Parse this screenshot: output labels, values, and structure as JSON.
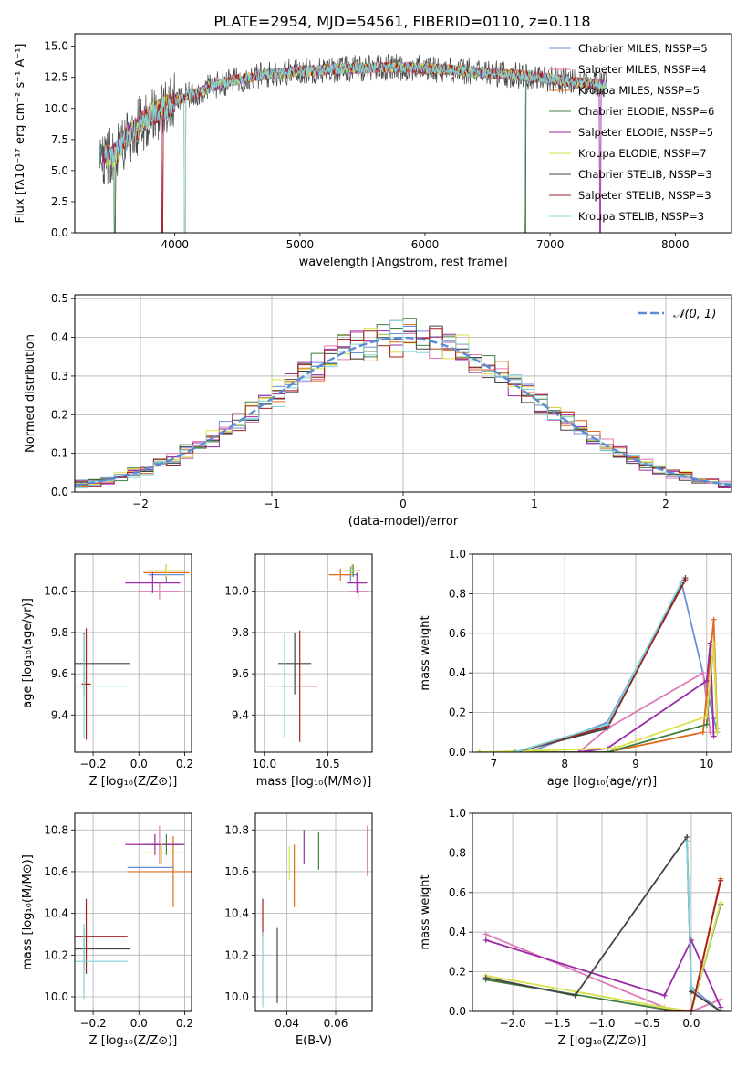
{
  "figure": {
    "title": "PLATE=2954, MJD=54561, FIBERID=0110, z=0.118"
  },
  "colors": {
    "Chabrier MILES": "#6a8fd8",
    "Salpeter MILES": "#e07ab8",
    "Kroupa MILES": "#e06a1a",
    "Chabrier ELODIE": "#3f7f3f",
    "Salpeter ELODIE": "#9b2ba6",
    "Kroupa ELODIE": "#d7e24a",
    "Chabrier STELIB": "#444444",
    "Salpeter STELIB": "#a51f1f",
    "Kroupa STELIB": "#7fd3d8",
    "normal": "#5b8bd6"
  },
  "chart_data": [
    {
      "id": "spectrum",
      "type": "line",
      "title": "PLATE=2954, MJD=54561, FIBERID=0110, z=0.118",
      "xlabel": "wavelength [Angstrom, rest frame]",
      "ylabel": "Flux [fλ10⁻¹⁷ erg cm⁻² s⁻¹ A⁻¹]",
      "xlim": [
        3200,
        8450
      ],
      "ylim": [
        0,
        16
      ],
      "xticks": [
        4000,
        5000,
        6000,
        7000,
        8000
      ],
      "yticks": [
        0.0,
        2.5,
        5.0,
        7.5,
        10.0,
        12.5,
        15.0
      ],
      "legend_position": "right",
      "legend": [
        "Chabrier MILES, N_SSP=5",
        "Salpeter MILES, N_SSP=4",
        "Kroupa MILES, N_SSP=5",
        "Chabrier ELODIE, N_SSP=6",
        "Salpeter ELODIE, N_SSP=5",
        "Kroupa ELODIE, N_SSP=7",
        "Chabrier STELIB, N_SSP=3",
        "Salpeter STELIB, N_SSP=3",
        "Kroupa STELIB, N_SSP=3"
      ],
      "data_curve": {
        "x": [
          3400,
          3500,
          3600,
          3700,
          3800,
          3900,
          4000,
          4100,
          4200,
          4300,
          4400,
          4600,
          4800,
          5000,
          5200,
          5400,
          5600,
          5800,
          6000,
          6200,
          6400,
          6600,
          6800,
          7000,
          7200,
          7400
        ],
        "y": [
          6.3,
          6.0,
          7.5,
          8.5,
          9.5,
          10.0,
          10.5,
          11.0,
          11.3,
          11.8,
          12.1,
          12.5,
          12.8,
          13.0,
          13.1,
          13.2,
          13.3,
          13.3,
          13.2,
          13.1,
          12.9,
          12.8,
          12.6,
          12.4,
          12.1,
          11.9
        ]
      },
      "dropouts": [
        3520,
        3900,
        4080,
        6800,
        7400
      ]
    },
    {
      "id": "residuals",
      "type": "histogram",
      "xlabel": "(data-model)/error",
      "ylabel": "Normed distribution",
      "xlim": [
        -2.5,
        2.5
      ],
      "ylim": [
        0,
        0.51
      ],
      "xticks": [
        -2,
        -1,
        0,
        1,
        2
      ],
      "yticks": [
        0.0,
        0.1,
        0.2,
        0.3,
        0.4,
        0.5
      ],
      "grid": true,
      "legend_position": "top-right",
      "legend": [
        "𝒩(0, 1)"
      ],
      "bin_width": 0.1,
      "normal_reference": {
        "mean": 0,
        "sigma": 1
      }
    },
    {
      "id": "age-Z",
      "type": "errorbar",
      "xlabel": "Z [log₁₀(Z/Z⊙)]",
      "ylabel": "age  [log₁₀(age/yr)]",
      "xlim": [
        -0.28,
        0.23
      ],
      "ylim": [
        9.22,
        10.18
      ],
      "xticks": [
        -0.2,
        0.0,
        0.2
      ],
      "yticks": [
        9.4,
        9.6,
        9.8,
        10.0
      ],
      "grid": true,
      "series": [
        {
          "name": "Chabrier MILES",
          "x": 0.12,
          "xerr": 0.08,
          "y": 10.08,
          "yerr": 0.04
        },
        {
          "name": "Salpeter MILES",
          "x": 0.09,
          "xerr": 0.09,
          "y": 10.0,
          "yerr": 0.04
        },
        {
          "name": "Kroupa MILES",
          "x": 0.12,
          "xerr": 0.1,
          "y": 10.09,
          "yerr": 0.03
        },
        {
          "name": "Chabrier ELODIE",
          "x": 0.12,
          "xerr": 0.08,
          "y": 10.1,
          "yerr": 0.03
        },
        {
          "name": "Salpeter ELODIE",
          "x": 0.06,
          "xerr": 0.12,
          "y": 10.04,
          "yerr": 0.05
        },
        {
          "name": "Kroupa ELODIE",
          "x": 0.12,
          "xerr": 0.08,
          "y": 10.1,
          "yerr": 0.03
        },
        {
          "name": "Chabrier STELIB",
          "x": -0.24,
          "xerr": 0.2,
          "y": 9.65,
          "yerr": 0.15
        },
        {
          "name": "Salpeter STELIB",
          "x": -0.23,
          "xerr": 0.02,
          "y": 9.55,
          "yerr": 0.27
        },
        {
          "name": "Kroupa STELIB",
          "x": -0.24,
          "xerr": 0.19,
          "y": 9.54,
          "yerr": 0.25
        }
      ]
    },
    {
      "id": "age-mass",
      "type": "errorbar",
      "xlabel": "mass [log₁₀(M/M⊙)]",
      "ylabel": "",
      "xlim": [
        9.93,
        10.85
      ],
      "ylim": [
        9.22,
        10.18
      ],
      "xticks": [
        10.0,
        10.5
      ],
      "yticks": [
        9.4,
        9.6,
        9.8,
        10.0
      ],
      "grid": true,
      "series": [
        {
          "name": "Chabrier MILES",
          "x": 10.68,
          "xerr": 0.06,
          "y": 10.08,
          "yerr": 0.04
        },
        {
          "name": "Salpeter MILES",
          "x": 10.74,
          "xerr": 0.07,
          "y": 10.0,
          "yerr": 0.04
        },
        {
          "name": "Kroupa MILES",
          "x": 10.6,
          "xerr": 0.09,
          "y": 10.08,
          "yerr": 0.03
        },
        {
          "name": "Chabrier ELODIE",
          "x": 10.7,
          "xerr": 0.06,
          "y": 10.1,
          "yerr": 0.03
        },
        {
          "name": "Salpeter ELODIE",
          "x": 10.73,
          "xerr": 0.08,
          "y": 10.04,
          "yerr": 0.05
        },
        {
          "name": "Kroupa ELODIE",
          "x": 10.69,
          "xerr": 0.06,
          "y": 10.1,
          "yerr": 0.03
        },
        {
          "name": "Chabrier STELIB",
          "x": 10.24,
          "xerr": 0.13,
          "y": 9.65,
          "yerr": 0.15
        },
        {
          "name": "Salpeter STELIB",
          "x": 10.28,
          "xerr": 0.14,
          "y": 9.54,
          "yerr": 0.27
        },
        {
          "name": "Kroupa STELIB",
          "x": 10.16,
          "xerr": 0.14,
          "y": 9.54,
          "yerr": 0.25
        }
      ]
    },
    {
      "id": "weight-age",
      "type": "line",
      "xlabel": "age  [log₁₀(age/yr)]",
      "ylabel": "mass weight",
      "xlim": [
        6.7,
        10.35
      ],
      "ylim": [
        0,
        1
      ],
      "xticks": [
        7,
        8,
        9,
        10
      ],
      "yticks": [
        0.0,
        0.2,
        0.4,
        0.6,
        0.8,
        1.0
      ],
      "grid": true,
      "series": [
        {
          "name": "Chabrier MILES",
          "x": [
            6.8,
            7.5,
            8.6,
            9.65,
            10.1,
            10.15
          ],
          "y": [
            0.0,
            0.0,
            0.15,
            0.85,
            0.17,
            0.1
          ]
        },
        {
          "name": "Salpeter MILES",
          "x": [
            8.2,
            8.6,
            9.95,
            10.05
          ],
          "y": [
            0.0,
            0.12,
            0.4,
            0.1
          ]
        },
        {
          "name": "Kroupa MILES",
          "x": [
            6.8,
            8.6,
            9.95,
            10.1,
            10.15
          ],
          "y": [
            0.0,
            0.0,
            0.1,
            0.67,
            0.12
          ]
        },
        {
          "name": "Chabrier ELODIE",
          "x": [
            6.8,
            8.6,
            10.0,
            10.1,
            10.15
          ],
          "y": [
            0.0,
            0.0,
            0.14,
            0.55,
            0.1
          ]
        },
        {
          "name": "Salpeter ELODIE",
          "x": [
            8.2,
            8.6,
            10.0,
            10.05,
            10.1
          ],
          "y": [
            0.0,
            0.02,
            0.36,
            0.55,
            0.08
          ]
        },
        {
          "name": "Kroupa ELODIE",
          "x": [
            6.8,
            8.7,
            10.0,
            10.1,
            10.15
          ],
          "y": [
            0.0,
            0.02,
            0.18,
            0.55,
            0.1
          ]
        },
        {
          "name": "Chabrier STELIB",
          "x": [
            7.3,
            8.6,
            9.7
          ],
          "y": [
            0.0,
            0.12,
            0.88
          ]
        },
        {
          "name": "Salpeter STELIB",
          "x": [
            7.3,
            8.6,
            9.7
          ],
          "y": [
            0.0,
            0.13,
            0.87
          ]
        },
        {
          "name": "Kroupa STELIB",
          "x": [
            7.3,
            8.6,
            9.65
          ],
          "y": [
            0.0,
            0.14,
            0.86
          ]
        }
      ]
    },
    {
      "id": "mass-Z",
      "type": "errorbar",
      "xlabel": "Z [log₁₀(Z/Z⊙)]",
      "ylabel": "mass [log₁₀(M/M⊙)]",
      "xlim": [
        -0.28,
        0.23
      ],
      "ylim": [
        9.93,
        10.88
      ],
      "xticks": [
        -0.2,
        0.0,
        0.2
      ],
      "yticks": [
        10.0,
        10.2,
        10.4,
        10.6,
        10.8
      ],
      "grid": true,
      "series": [
        {
          "name": "Chabrier MILES",
          "x": 0.05,
          "xerr": 0.1,
          "y": 10.62,
          "yerr": 0.0
        },
        {
          "name": "Salpeter MILES",
          "x": 0.09,
          "xerr": 0.08,
          "y": 10.73,
          "yerr": 0.09
        },
        {
          "name": "Kroupa MILES",
          "x": 0.15,
          "xerr": 0.2,
          "y": 10.6,
          "yerr": 0.17
        },
        {
          "name": "Chabrier ELODIE",
          "x": 0.12,
          "xerr": 0.07,
          "y": 10.73,
          "yerr": 0.05
        },
        {
          "name": "Salpeter ELODIE",
          "x": 0.07,
          "xerr": 0.13,
          "y": 10.73,
          "yerr": 0.05
        },
        {
          "name": "Kroupa ELODIE",
          "x": 0.1,
          "xerr": 0.1,
          "y": 10.69,
          "yerr": 0.05
        },
        {
          "name": "Chabrier STELIB",
          "x": -0.24,
          "xerr": 0.2,
          "y": 10.23,
          "yerr": 0.1
        },
        {
          "name": "Salpeter STELIB",
          "x": -0.23,
          "xerr": 0.18,
          "y": 10.29,
          "yerr": 0.18
        },
        {
          "name": "Kroupa STELIB",
          "x": -0.24,
          "xerr": 0.19,
          "y": 10.17,
          "yerr": 0.18
        }
      ]
    },
    {
      "id": "mass-ebv",
      "type": "errorbar",
      "xlabel": "E(B-V)",
      "ylabel": "",
      "xlim": [
        0.027,
        0.075
      ],
      "ylim": [
        9.93,
        10.88
      ],
      "xticks": [
        0.04,
        0.06
      ],
      "yticks": [
        10.0,
        10.2,
        10.4,
        10.6,
        10.8
      ],
      "grid": true,
      "series": [
        {
          "name": "Salpeter MILES",
          "x": 0.073,
          "y": 10.7,
          "yerr": 0.12
        },
        {
          "name": "Kroupa MILES",
          "x": 0.043,
          "y": 10.58,
          "yerr": 0.15
        },
        {
          "name": "Chabrier ELODIE",
          "x": 0.053,
          "y": 10.7,
          "yerr": 0.09
        },
        {
          "name": "Salpeter ELODIE",
          "x": 0.047,
          "y": 10.72,
          "yerr": 0.08
        },
        {
          "name": "Kroupa ELODIE",
          "x": 0.041,
          "y": 10.64,
          "yerr": 0.08
        },
        {
          "name": "Chabrier STELIB",
          "x": 0.036,
          "y": 10.15,
          "yerr": 0.18
        },
        {
          "name": "Salpeter STELIB",
          "x": 0.03,
          "y": 10.38,
          "yerr": 0.09
        },
        {
          "name": "Kroupa STELIB",
          "x": 0.03,
          "y": 10.13,
          "yerr": 0.18
        }
      ]
    },
    {
      "id": "weight-Z",
      "type": "line",
      "xlabel": "Z [log₁₀(Z/Z⊙)]",
      "ylabel": "mass weight",
      "xlim": [
        -2.45,
        0.45
      ],
      "ylim": [
        0,
        1
      ],
      "xticks": [
        -2.0,
        -1.5,
        -1.0,
        -0.5,
        0.0
      ],
      "yticks": [
        0.0,
        0.2,
        0.4,
        0.6,
        0.8,
        1.0
      ],
      "grid": true,
      "series": [
        {
          "name": "Chabrier MILES",
          "x": [
            -0.05,
            0.0,
            0.33
          ],
          "y": [
            0.86,
            0.12,
            0.0
          ]
        },
        {
          "name": "Salpeter MILES",
          "x": [
            -2.3,
            -0.3,
            0.0,
            0.33
          ],
          "y": [
            0.39,
            0.02,
            0.0,
            0.06
          ]
        },
        {
          "name": "Kroupa MILES",
          "x": [
            -0.3,
            0.0,
            0.33
          ],
          "y": [
            0.0,
            0.0,
            0.67
          ]
        },
        {
          "name": "Chabrier ELODIE",
          "x": [
            -2.3,
            -0.3,
            0.0,
            0.33
          ],
          "y": [
            0.16,
            0.01,
            0.0,
            0.54
          ]
        },
        {
          "name": "Salpeter ELODIE",
          "x": [
            -2.3,
            -0.3,
            0.0,
            0.33
          ],
          "y": [
            0.36,
            0.08,
            0.36,
            0.02
          ]
        },
        {
          "name": "Kroupa ELODIE",
          "x": [
            -2.3,
            -0.3,
            0.0,
            0.33
          ],
          "y": [
            0.18,
            0.02,
            0.0,
            0.55
          ]
        },
        {
          "name": "Chabrier STELIB",
          "x": [
            -2.3,
            -1.3,
            -0.05,
            0.0,
            0.33
          ],
          "y": [
            0.17,
            0.08,
            0.88,
            0.1,
            0.0
          ]
        },
        {
          "name": "Salpeter STELIB",
          "x": [
            -0.3,
            0.0,
            0.33
          ],
          "y": [
            0.0,
            0.0,
            0.66
          ]
        },
        {
          "name": "Kroupa STELIB",
          "x": [
            -0.05,
            0.0
          ],
          "y": [
            0.86,
            0.12
          ]
        }
      ]
    }
  ]
}
